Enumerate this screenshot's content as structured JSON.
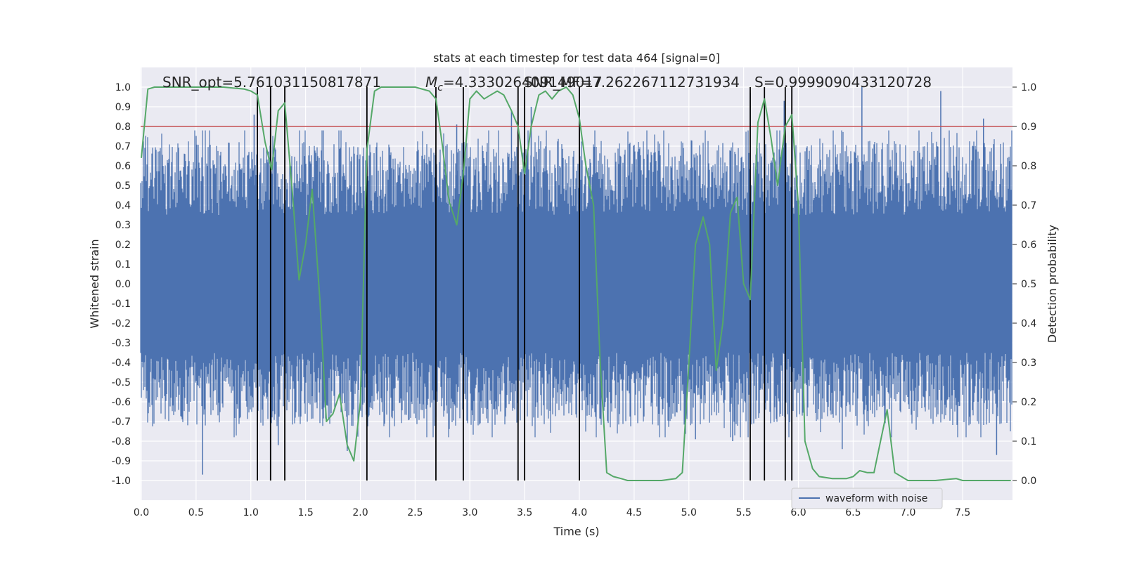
{
  "chart_data": {
    "type": "line",
    "title": "stats at each timestep for test data 464 [signal=0]",
    "xlabel": "Time (s)",
    "ylabel": "Whitened strain",
    "y2label": "Detection probability",
    "xlim": [
      0,
      8
    ],
    "ylim": [
      -1.1,
      1.1
    ],
    "y2lim": [
      -0.05,
      1.05
    ],
    "x_ticks": [
      0.0,
      0.5,
      1.0,
      1.5,
      2.0,
      2.5,
      3.0,
      3.5,
      4.0,
      4.5,
      5.0,
      5.5,
      6.0,
      6.5,
      7.0,
      7.5
    ],
    "x_tick_labels": [
      "0.0",
      "0.5",
      "1.0",
      "1.5",
      "2.0",
      "2.5",
      "3.0",
      "3.5",
      "4.0",
      "4.5",
      "5.0",
      "5.5",
      "6.0",
      "6.5",
      "7.0",
      "7.5"
    ],
    "y_ticks": [
      -1.0,
      -0.9,
      -0.8,
      -0.7,
      -0.6,
      -0.5,
      -0.4,
      -0.3,
      -0.2,
      -0.1,
      0.0,
      0.1,
      0.2,
      0.3,
      0.4,
      0.5,
      0.6,
      0.7,
      0.8,
      0.9,
      1.0
    ],
    "y_tick_labels": [
      "-1.0",
      "-0.9",
      "-0.8",
      "-0.7",
      "-0.6",
      "-0.5",
      "-0.4",
      "-0.3",
      "-0.2",
      "-0.1",
      "0.0",
      "0.1",
      "0.2",
      "0.3",
      "0.4",
      "0.5",
      "0.6",
      "0.7",
      "0.8",
      "0.9",
      "1.0"
    ],
    "y2_ticks": [
      0.0,
      0.1,
      0.2,
      0.3,
      0.4,
      0.5,
      0.6,
      0.7,
      0.8,
      0.9,
      1.0
    ],
    "y2_tick_labels": [
      "0.0",
      "0.1",
      "0.2",
      "0.3",
      "0.4",
      "0.5",
      "0.6",
      "0.7",
      "0.8",
      "0.9",
      "1.0"
    ],
    "grid": true,
    "background": "#eaeaf2",
    "annotations": {
      "snr_opt": "SNR_opt=5.761031150817871",
      "mc": "=4.333026409149017",
      "mc_symbol": "M",
      "mc_subscript": "c",
      "snr_mf": "SNR_MF=7.262267112731934",
      "s": "S=0.9999090433120728"
    },
    "threshold": {
      "value": 0.9,
      "axis": "y2",
      "color": "#c44e52"
    },
    "vertical_lines": [
      1.06,
      1.18,
      1.31,
      2.06,
      2.69,
      2.94,
      3.44,
      3.5,
      4.0,
      5.56,
      5.69,
      5.88,
      5.94
    ],
    "series": [
      {
        "name": "waveform with noise",
        "axis": "y",
        "color": "#4c72b0",
        "style": "noise",
        "amplitude_typical": 0.5,
        "spike_times": [
          0.56,
          1.03,
          1.06,
          1.25,
          1.88,
          2.88,
          3.38,
          3.56,
          4.0,
          5.06,
          5.4,
          5.56,
          5.87,
          6.4,
          6.58,
          7.3,
          7.69,
          7.81
        ],
        "spike_values": [
          -0.97,
          0.86,
          -0.72,
          -0.82,
          -0.85,
          0.81,
          0.88,
          0.9,
          -0.78,
          -0.79,
          -0.8,
          0.97,
          0.93,
          -0.84,
          1.0,
          0.98,
          0.84,
          -0.87
        ]
      },
      {
        "name": "",
        "axis": "y2",
        "color": "#55a868",
        "x": [
          0.0,
          0.06,
          0.12,
          0.25,
          0.5,
          0.75,
          0.94,
          1.0,
          1.06,
          1.13,
          1.19,
          1.25,
          1.31,
          1.38,
          1.44,
          1.5,
          1.56,
          1.63,
          1.69,
          1.75,
          1.81,
          1.88,
          1.94,
          2.0,
          2.06,
          2.13,
          2.19,
          2.25,
          2.5,
          2.63,
          2.69,
          2.75,
          2.81,
          2.88,
          2.94,
          3.0,
          3.06,
          3.13,
          3.19,
          3.25,
          3.31,
          3.38,
          3.44,
          3.5,
          3.56,
          3.63,
          3.69,
          3.75,
          3.81,
          3.88,
          3.94,
          4.0,
          4.06,
          4.13,
          4.19,
          4.25,
          4.31,
          4.38,
          4.44,
          4.5,
          4.75,
          4.88,
          4.94,
          5.0,
          5.06,
          5.13,
          5.19,
          5.25,
          5.31,
          5.38,
          5.44,
          5.5,
          5.56,
          5.63,
          5.69,
          5.75,
          5.81,
          5.88,
          5.94,
          6.0,
          6.06,
          6.13,
          6.19,
          6.31,
          6.44,
          6.5,
          6.56,
          6.63,
          6.69,
          6.75,
          6.81,
          6.88,
          7.0,
          7.25,
          7.44,
          7.5,
          7.75,
          7.94
        ],
        "values": [
          0.82,
          0.995,
          1.0,
          1.0,
          1.0,
          1.0,
          0.995,
          0.99,
          0.98,
          0.86,
          0.79,
          0.94,
          0.96,
          0.73,
          0.51,
          0.6,
          0.74,
          0.46,
          0.15,
          0.17,
          0.22,
          0.09,
          0.05,
          0.2,
          0.84,
          0.99,
          1.0,
          1.0,
          1.0,
          0.99,
          0.97,
          0.85,
          0.71,
          0.65,
          0.78,
          0.97,
          0.99,
          0.97,
          0.98,
          0.99,
          0.98,
          0.94,
          0.9,
          0.78,
          0.9,
          0.98,
          0.99,
          0.97,
          0.99,
          1.0,
          0.98,
          0.92,
          0.8,
          0.7,
          0.3,
          0.02,
          0.01,
          0.005,
          0.0,
          0.0,
          0.0,
          0.005,
          0.02,
          0.3,
          0.6,
          0.67,
          0.6,
          0.28,
          0.4,
          0.68,
          0.72,
          0.5,
          0.46,
          0.91,
          0.97,
          0.87,
          0.75,
          0.9,
          0.93,
          0.7,
          0.1,
          0.03,
          0.01,
          0.005,
          0.005,
          0.01,
          0.025,
          0.02,
          0.02,
          0.1,
          0.18,
          0.02,
          0.0,
          0.0,
          0.005,
          0.0,
          0.0,
          0.0
        ]
      }
    ],
    "legend": {
      "position": "bottom-right",
      "entries": [
        "waveform with noise"
      ]
    }
  }
}
